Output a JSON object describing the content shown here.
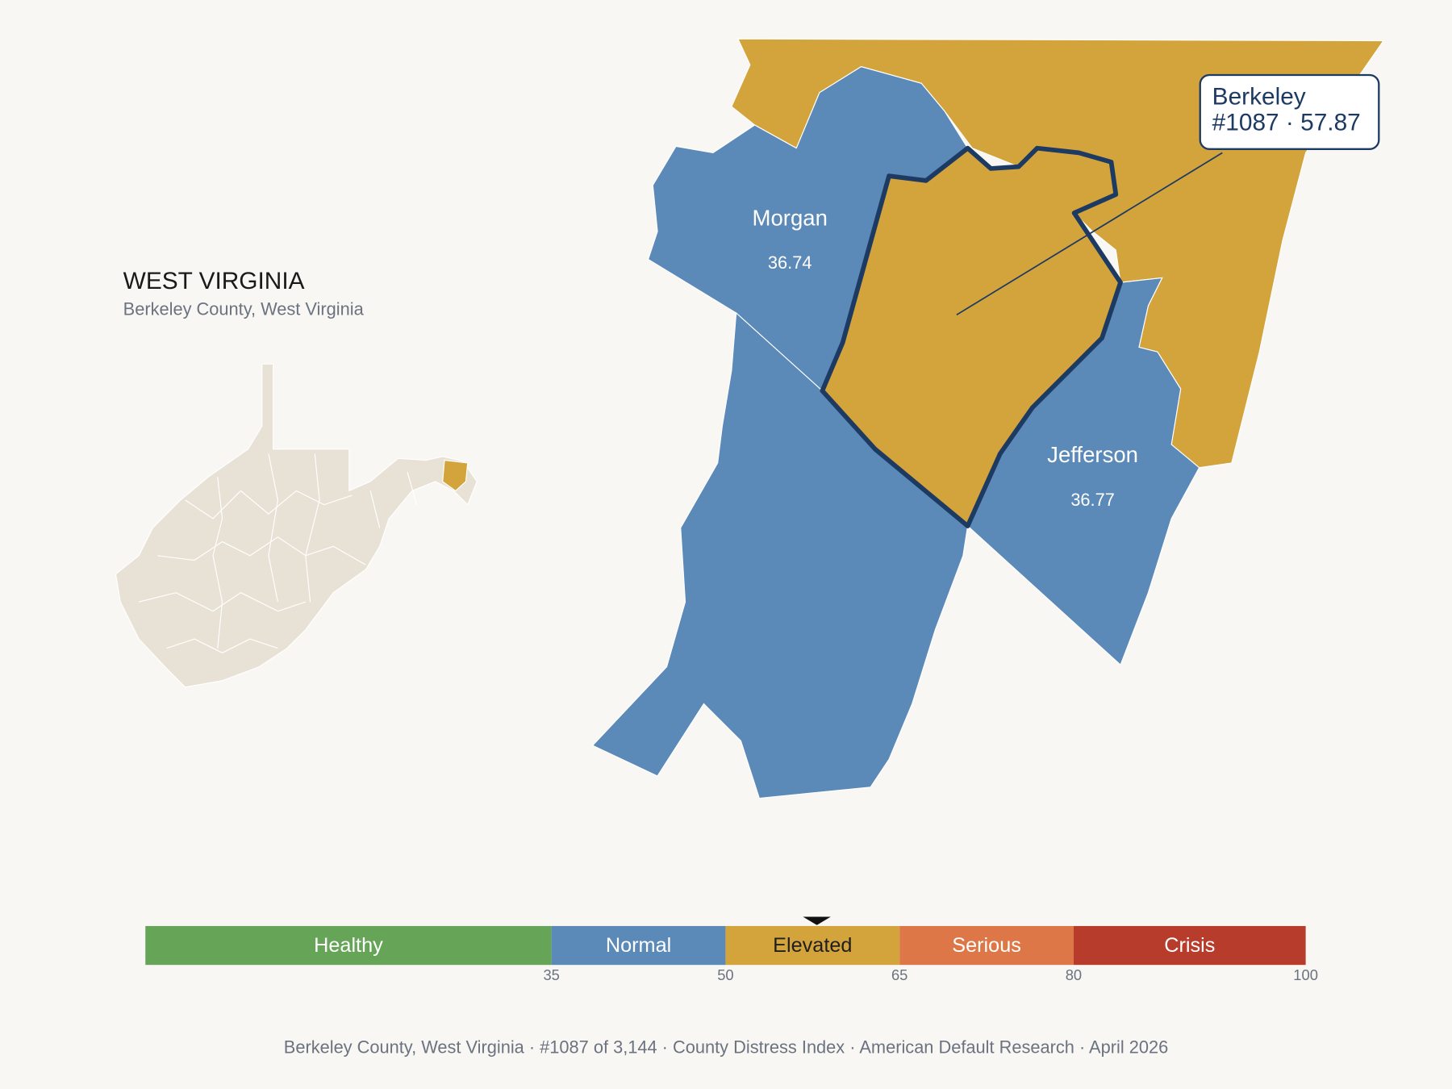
{
  "header": {
    "title": "WEST VIRGINIA",
    "subtitle": "Berkeley County, West Virginia"
  },
  "map": {
    "counties": [
      {
        "name": "Morgan",
        "score": 36.74
      },
      {
        "name": "Jefferson",
        "score": 36.77
      }
    ],
    "callout": {
      "name": "Berkeley",
      "detail": "#1087 · 57.87"
    }
  },
  "scale": {
    "lim": [
      0,
      100
    ],
    "segments": [
      {
        "label": "Healthy",
        "color": "#66a558",
        "text_color": "#ffffff"
      },
      {
        "label": "Normal",
        "color": "#5b89b8",
        "text_color": "#ffffff"
      },
      {
        "label": "Elevated",
        "color": "#d3a33c",
        "text_color": "#1f1f1f"
      },
      {
        "label": "Serious",
        "color": "#dd7747",
        "text_color": "#ffffff"
      },
      {
        "label": "Crisis",
        "color": "#b83c2c",
        "text_color": "#ffffff"
      }
    ],
    "ticks": [
      35,
      50,
      65,
      80,
      100
    ],
    "marker": 57.87
  },
  "footer": "Berkeley County, West Virginia  ·  #1087 of 3,144  ·  County Distress Index  ·  American Default Research  ·  April 2026"
}
